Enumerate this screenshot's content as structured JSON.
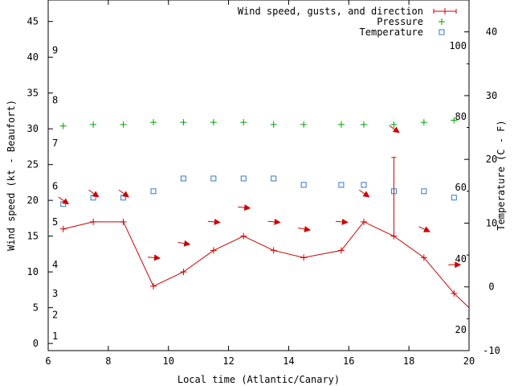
{
  "chart_data": {
    "type": "line",
    "xlabel": "Local time (Atlantic/Canary)",
    "ylabel": "Wind speed (kt - Beaufort)",
    "y2label": "Temperature (C - F)",
    "xlim": [
      6,
      20
    ],
    "ylim": [
      -1,
      48
    ],
    "y2lim": [
      -10,
      45
    ],
    "x_ticks": [
      6,
      8,
      10,
      12,
      14,
      16,
      18,
      20
    ],
    "y_ticks": [
      0,
      5,
      10,
      15,
      20,
      25,
      30,
      35,
      40,
      45
    ],
    "y2_ticks": [
      -10,
      0,
      10,
      20,
      30,
      40
    ],
    "beaufort_labels": [
      {
        "text": "1",
        "y": 1
      },
      {
        "text": "2",
        "y": 4
      },
      {
        "text": "3",
        "y": 7
      },
      {
        "text": "4",
        "y": 11
      },
      {
        "text": "5",
        "y": 17
      },
      {
        "text": "6",
        "y": 22
      },
      {
        "text": "7",
        "y": 28
      },
      {
        "text": "8",
        "y": 34
      },
      {
        "text": "9",
        "y": 41
      }
    ],
    "fahrenheit_labels": [
      {
        "text": "20",
        "c": -6.7
      },
      {
        "text": "40",
        "c": 4.4
      },
      {
        "text": "60",
        "c": 15.6
      },
      {
        "text": "80",
        "c": 26.7
      },
      {
        "text": "100",
        "c": 37.8
      }
    ],
    "legend": {
      "placement": "top-right",
      "entries": [
        {
          "label": "Wind speed, gusts, and direction",
          "color": "#cc0000"
        },
        {
          "label": "Pressure",
          "color": "#00a000"
        },
        {
          "label": "Temperature",
          "color": "#3377cc"
        }
      ]
    },
    "series": [
      {
        "name": "Wind speed, gusts, and direction",
        "color": "#cc0000",
        "x": [
          6.5,
          7.5,
          8.5,
          9.5,
          10.5,
          11.5,
          12.5,
          13.5,
          14.5,
          15.75,
          16.5,
          17.5,
          18.5,
          19.5,
          20
        ],
        "y": [
          16,
          17,
          17,
          8,
          10,
          13,
          15,
          13,
          12,
          13,
          17,
          15,
          12,
          7,
          5
        ]
      },
      {
        "name": "Gusts",
        "color": "#cc0000",
        "x": [
          17.5
        ],
        "y": [
          26
        ]
      },
      {
        "name": "Pressure",
        "color": "#00a000",
        "x": [
          6.5,
          7.5,
          8.5,
          9.5,
          10.5,
          11.5,
          12.5,
          13.5,
          14.5,
          15.75,
          16.5,
          17.5,
          18.5,
          19.5
        ],
        "y": [
          30.4,
          30.6,
          30.6,
          30.9,
          30.9,
          30.9,
          30.9,
          30.6,
          30.6,
          30.6,
          30.6,
          30.6,
          30.9,
          31.2
        ]
      },
      {
        "name": "Temperature",
        "color": "#3377cc",
        "x": [
          6.5,
          7.5,
          8.5,
          9.5,
          10.5,
          11.5,
          12.5,
          13.5,
          14.5,
          15.75,
          16.5,
          17.5,
          18.5,
          19.5
        ],
        "y": [
          13,
          14,
          14,
          15,
          17,
          17,
          17,
          17,
          16,
          16,
          16,
          15,
          15,
          14
        ]
      }
    ],
    "wind_direction": {
      "color": "#cc0000",
      "arrows": [
        {
          "x": 6.5,
          "y": 20,
          "to_deg": 35
        },
        {
          "x": 7.5,
          "y": 21,
          "to_deg": 35
        },
        {
          "x": 8.5,
          "y": 21,
          "to_deg": 35
        },
        {
          "x": 9.5,
          "y": 12,
          "to_deg": 5
        },
        {
          "x": 10.5,
          "y": 14,
          "to_deg": 10
        },
        {
          "x": 11.5,
          "y": 17,
          "to_deg": 5
        },
        {
          "x": 12.5,
          "y": 19,
          "to_deg": 5
        },
        {
          "x": 13.5,
          "y": 17,
          "to_deg": 5
        },
        {
          "x": 14.5,
          "y": 16,
          "to_deg": 10
        },
        {
          "x": 15.75,
          "y": 17,
          "to_deg": 5
        },
        {
          "x": 16.5,
          "y": 21,
          "to_deg": 35
        },
        {
          "x": 17.5,
          "y": 30,
          "to_deg": 35
        },
        {
          "x": 18.5,
          "y": 16,
          "to_deg": 25
        },
        {
          "x": 19.5,
          "y": 11,
          "to_deg": 0
        }
      ]
    }
  }
}
